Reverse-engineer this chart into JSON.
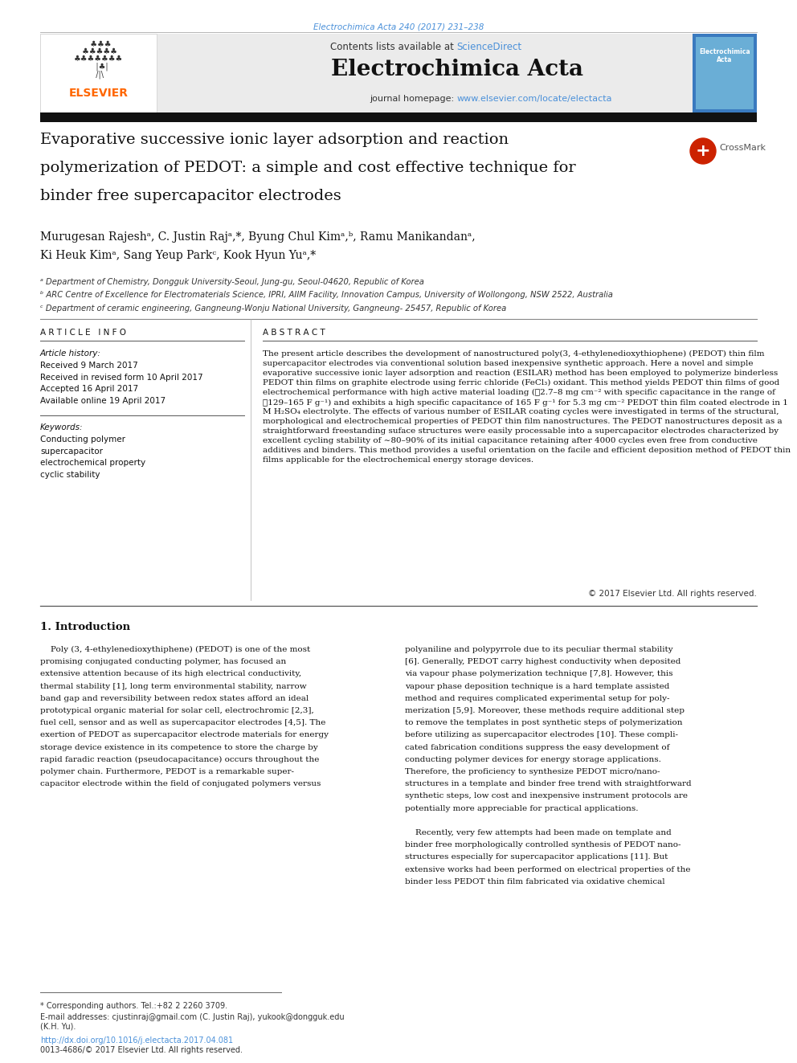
{
  "page_width": 9.92,
  "page_height": 13.23,
  "bg_color": "#ffffff",
  "top_citation": "Electrochimica Acta 240 (2017) 231–238",
  "top_citation_color": "#4a90d9",
  "journal_header_bg": "#ebebeb",
  "sciencedirect_color": "#4a90d9",
  "homepage_color": "#4a90d9",
  "elsevier_color": "#ff6600",
  "article_title_lines": [
    "Evaporative successive ionic layer adsorption and reaction",
    "polymerization of PEDOT: a simple and cost effective technique for",
    "binder free supercapacitor electrodes"
  ],
  "author_line1": "Murugesan Rajeshᵃ, C. Justin Rajᵃ,*, Byung Chul Kimᵃ,ᵇ, Ramu Manikandanᵃ,",
  "author_line2": "Ki Heuk Kimᵃ, Sang Yeup Parkᶜ, Kook Hyun Yuᵃ,*",
  "affil_a": "ᵃ Department of Chemistry, Dongguk University-Seoul, Jung-gu, Seoul-04620, Republic of Korea",
  "affil_b": "ᵇ ARC Centre of Excellence for Electromaterials Science, IPRI, AIIM Facility, Innovation Campus, University of Wollongong, NSW 2522, Australia",
  "affil_c": "ᶜ Department of ceramic engineering, Gangneung-Wonju National University, Gangneung- 25457, Republic of Korea",
  "article_info_header": "A R T I C L E   I N F O",
  "article_history_label": "Article history:",
  "received": "Received 9 March 2017",
  "revised": "Received in revised form 10 April 2017",
  "accepted": "Accepted 16 April 2017",
  "online": "Available online 19 April 2017",
  "keywords_label": "Keywords:",
  "keywords": [
    "Conducting polymer",
    "supercapacitor",
    "electrochemical property",
    "cyclic stability"
  ],
  "abstract_header": "A B S T R A C T",
  "abstract_text": "The present article describes the development of nanostructured poly(3, 4-ethylenedioxythiophene) (PEDOT) thin film supercapacitor electrodes via conventional solution based inexpensive synthetic approach. Here a novel and simple evaporative successive ionic layer adsorption and reaction (ESILAR) method has been employed to polymerize binderless PEDOT thin films on graphite electrode using ferric chloride (FeCl₃) oxidant. This method yields PEDOT thin films of good electrochemical performance with high active material loading (≲2.7–8 mg cm⁻² with specific capacitance in the range of ≲129–165 F g⁻¹) and exhibits a high specific capacitance of 165 F g⁻¹ for 5.3 mg cm⁻² PEDOT thin film coated electrode in 1 M H₂SO₄ electrolyte. The effects of various number of ESILAR coating cycles were investigated in terms of the structural, morphological and electrochemical properties of PEDOT thin film nanostructures. The PEDOT nanostructures deposit as a straightforward freestanding suface structures were easily processable into a supercapacitor electrodes characterized by excellent cycling stability of ∼80–90% of its initial capacitance retaining after 4000 cycles even free from conductive additives and binders. This method provides a useful orientation on the facile and efficient deposition method of PEDOT thin films applicable for the electrochemical energy storage devices.",
  "copyright": "© 2017 Elsevier Ltd. All rights reserved.",
  "intro_header": "1. Introduction",
  "intro_col1_lines": [
    "    Poly (3, 4-ethylenedioxythiphene) (PEDOT) is one of the most",
    "promising conjugated conducting polymer, has focused an",
    "extensive attention because of its high electrical conductivity,",
    "thermal stability [1], long term environmental stability, narrow",
    "band gap and reversibility between redox states afford an ideal",
    "prototypical organic material for solar cell, electrochromic [2,3],",
    "fuel cell, sensor and as well as supercapacitor electrodes [4,5]. The",
    "exertion of PEDOT as supercapacitor electrode materials for energy",
    "storage device existence in its competence to store the charge by",
    "rapid faradic reaction (pseudocapacitance) occurs throughout the",
    "polymer chain. Furthermore, PEDOT is a remarkable super-",
    "capacitor electrode within the field of conjugated polymers versus"
  ],
  "intro_col2_lines": [
    "polyaniline and polypyrrole due to its peculiar thermal stability",
    "[6]. Generally, PEDOT carry highest conductivity when deposited",
    "via vapour phase polymerization technique [7,8]. However, this",
    "vapour phase deposition technique is a hard template assisted",
    "method and requires complicated experimental setup for poly-",
    "merization [5,9]. Moreover, these methods require additional step",
    "to remove the templates in post synthetic steps of polymerization",
    "before utilizing as supercapacitor electrodes [10]. These compli-",
    "cated fabrication conditions suppress the easy development of",
    "conducting polymer devices for energy storage applications.",
    "Therefore, the proficiency to synthesize PEDOT micro/nano-",
    "structures in a template and binder free trend with straightforward",
    "synthetic steps, low cost and inexpensive instrument protocols are",
    "potentially more appreciable for practical applications.",
    "",
    "    Recently, very few attempts had been made on template and",
    "binder free morphologically controlled synthesis of PEDOT nano-",
    "structures especially for supercapacitor applications [11]. But",
    "extensive works had been performed on electrical properties of the",
    "binder less PEDOT thin film fabricated via oxidative chemical"
  ],
  "footnote_star": "* Corresponding authors. Tel.:+82 2 2260 3709.",
  "footnote_email1": "E-mail addresses: cjustinraj@gmail.com (C. Justin Raj), yukook@dongguk.edu",
  "footnote_email2": "(K.H. Yu).",
  "footnote_doi": "http://dx.doi.org/10.1016/j.electacta.2017.04.081",
  "footnote_issn": "0013-4686/© 2017 Elsevier Ltd. All rights reserved.",
  "link_color": "#4a90d9",
  "text_color": "#111111",
  "dark_bar": "#111111"
}
